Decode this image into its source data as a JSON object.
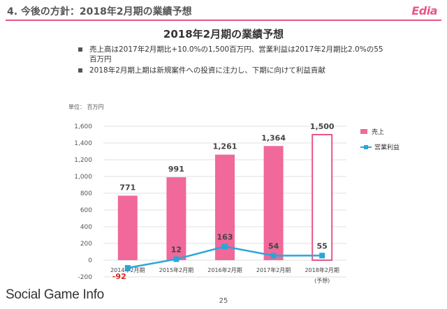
{
  "header": {
    "section_title": "4. 今後の方針：2018年2月期の業績予想",
    "logo_text": "Edia"
  },
  "slide_title": "2018年2月期の業績予想",
  "bullets": [
    "売上高は2017年2月期比+10.0%の1,500百万円、営業利益は2017年2月期比2.0%の55百万円",
    "2018年2月期上期は新規案件への投資に注力し、下期に向けて利益貢献"
  ],
  "unit_label": "単位： 百万円",
  "page_number": "25",
  "watermark": "Social Game Info",
  "chart_data": {
    "type": "bar",
    "categories": [
      "2014年2月期",
      "2015年2月期",
      "2016年2月期",
      "2017年2月期",
      "2018年2月期"
    ],
    "category_sublabels": [
      "",
      "",
      "",
      "",
      "(予想)"
    ],
    "series": [
      {
        "name": "売上",
        "type": "bar",
        "values": [
          771,
          991,
          1261,
          1364,
          1500
        ],
        "labels": [
          "771",
          "991",
          "1,261",
          "1,364",
          "1,500"
        ],
        "color": "#f0699a"
      },
      {
        "name": "営業利益",
        "type": "line",
        "values": [
          -92,
          12,
          163,
          54,
          55
        ],
        "labels": [
          "-92",
          "12",
          "163",
          "54",
          "55"
        ],
        "color": "#29a6d8"
      }
    ],
    "forecast_index": 4,
    "ylim": [
      -200,
      1600
    ],
    "yticks": [
      -200,
      0,
      200,
      400,
      600,
      800,
      1000,
      1200,
      1400,
      1600
    ],
    "ytick_labels": [
      "-200",
      "0",
      "200",
      "400",
      "600",
      "800",
      "1,000",
      "1,200",
      "1,400",
      "1,600"
    ],
    "negative_label_color": "#d9261c",
    "grid": true,
    "legend_position": "right"
  }
}
